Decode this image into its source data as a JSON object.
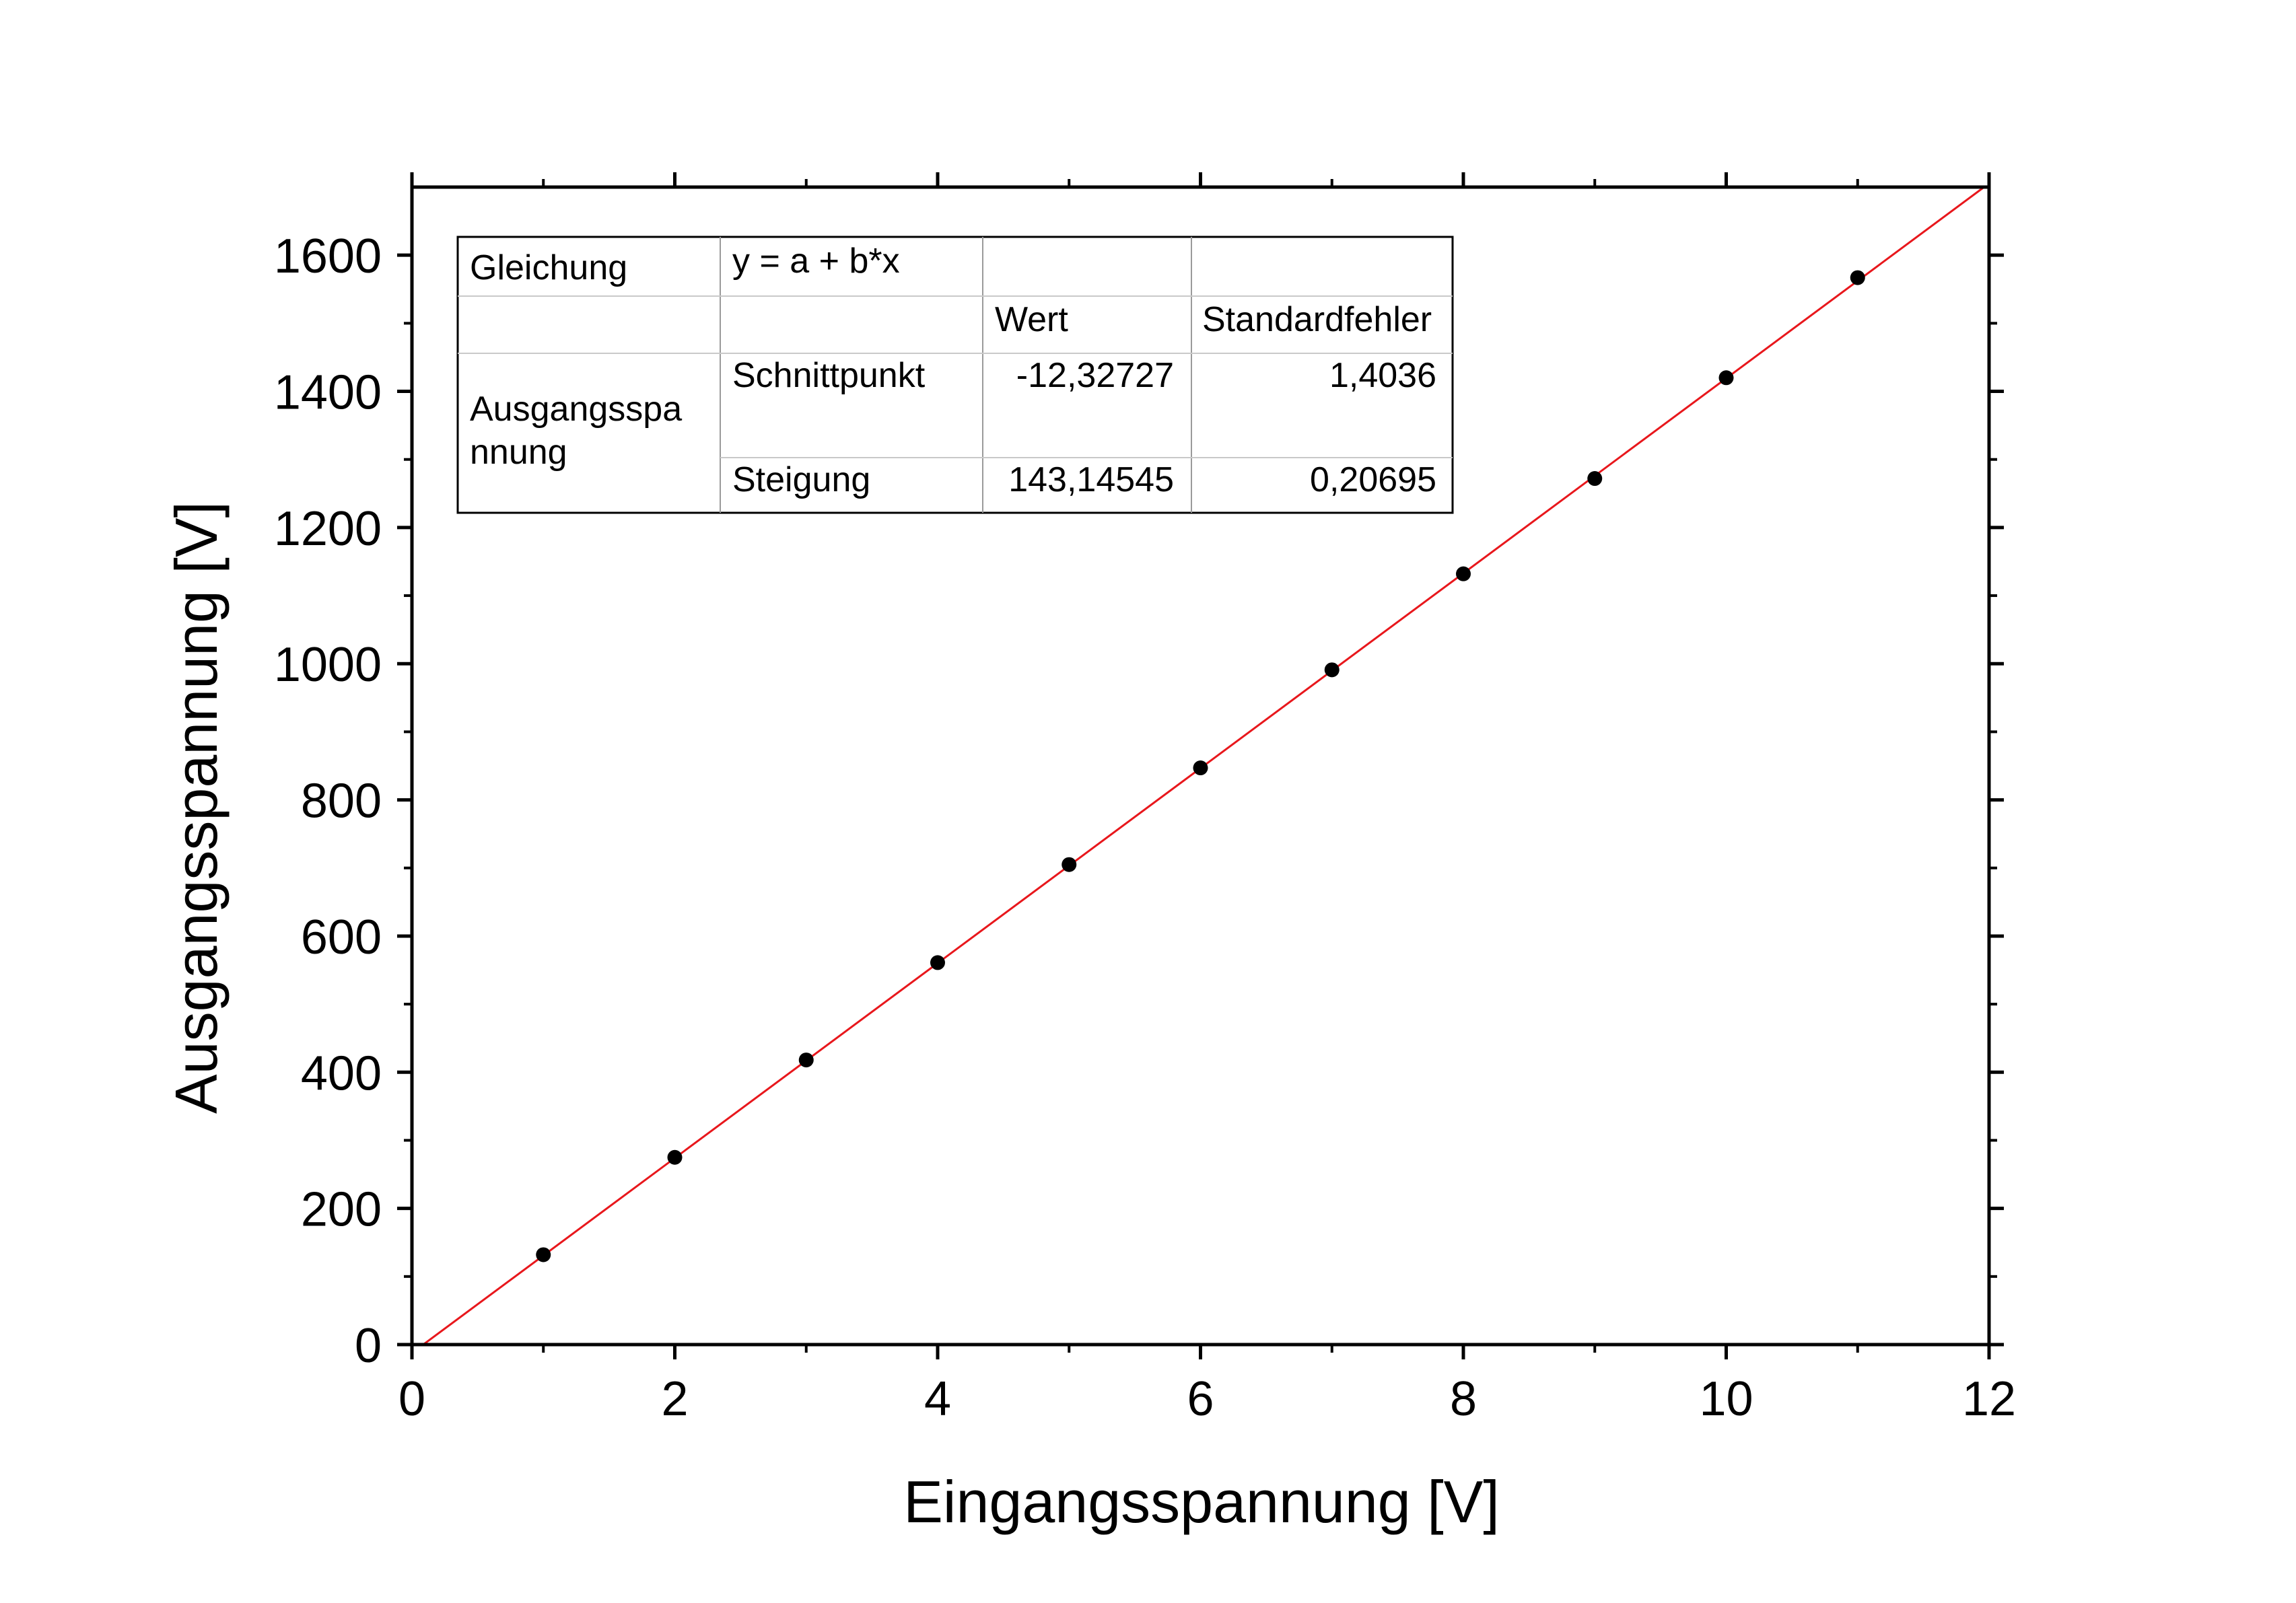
{
  "chart_data": {
    "type": "scatter",
    "xlabel": "Eingangsspannung [V]",
    "ylabel": "Ausgangsspannung [V]",
    "xlim": [
      0,
      12
    ],
    "ylim": [
      0,
      1700
    ],
    "x_ticks": [
      0,
      2,
      4,
      6,
      8,
      10,
      12
    ],
    "y_ticks": [
      0,
      200,
      400,
      600,
      800,
      1000,
      1200,
      1400,
      1600
    ],
    "x_minor_step": 1,
    "y_minor_step": 100,
    "grid": false,
    "legend": "none",
    "marker_color": "#000000",
    "fit_line_color": "#e8171c",
    "series": [
      {
        "x": [
          1,
          2,
          3,
          4,
          5,
          6,
          7,
          8,
          9,
          10,
          11
        ],
        "y": [
          132,
          275,
          418,
          561,
          705,
          847,
          991,
          1132,
          1272,
          1420,
          1567
        ]
      }
    ],
    "fit": {
      "intercept": -12.32727,
      "slope": 143.14545
    },
    "fit_table": {
      "rows": [
        [
          "Gleichung",
          "y = a + b*x",
          "",
          ""
        ],
        [
          "",
          "",
          "Wert",
          "Standardfehler"
        ],
        [
          "Ausgangsspa nnung",
          "Schnittpunkt",
          "-12,32727",
          "1,4036"
        ],
        [
          "",
          "Steigung",
          "143,14545",
          "0,20695"
        ]
      ]
    }
  }
}
